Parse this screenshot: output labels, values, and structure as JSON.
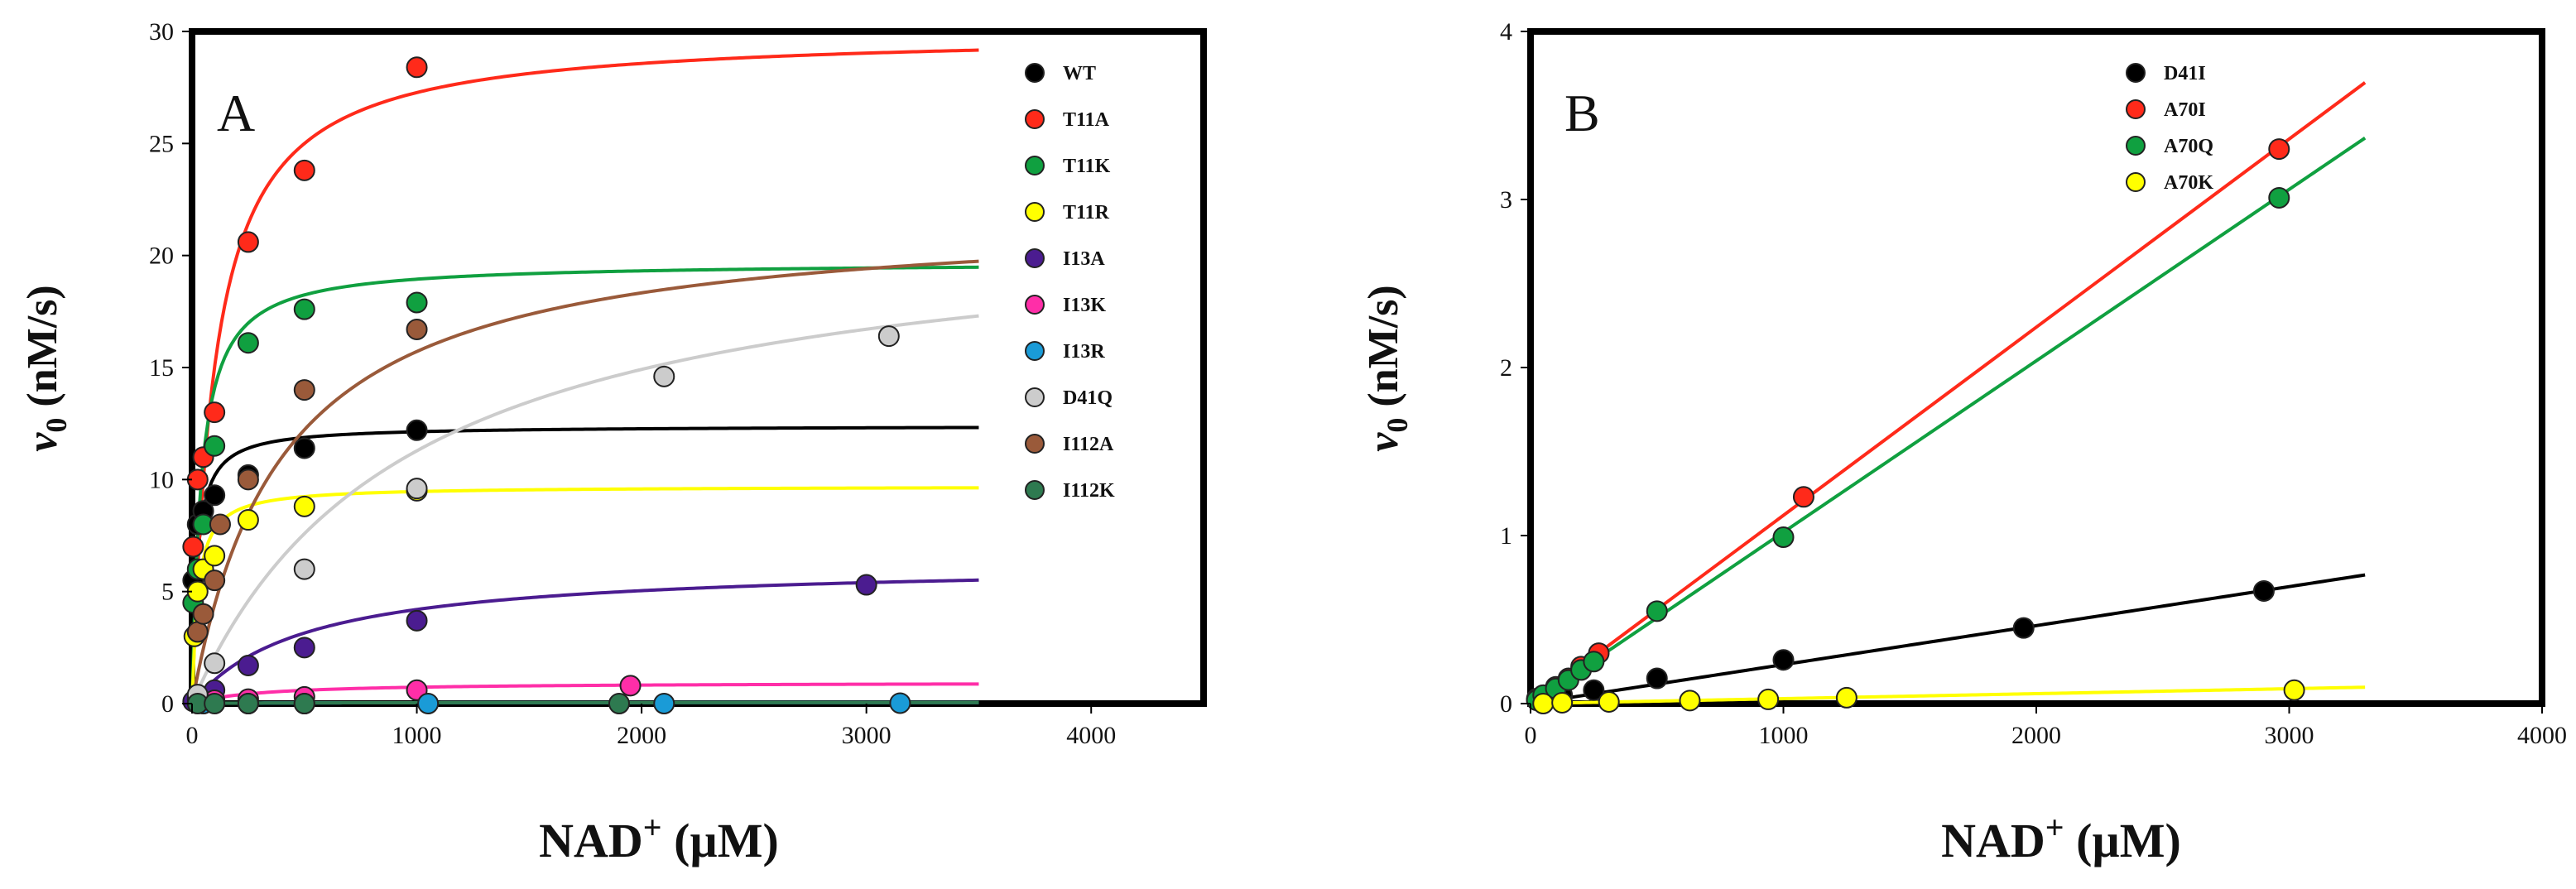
{
  "chart_data": [
    {
      "type": "scatter",
      "panel": "A",
      "xlabel_main": "NAD",
      "xlabel_sup": "+",
      "xlabel_unit": " (µM)",
      "ylabel_main": "v",
      "ylabel_sub": "0",
      "ylabel_unit": " (nM/s)",
      "xlim": [
        0,
        4500
      ],
      "ylim": [
        0,
        30
      ],
      "xticks": [
        0,
        1000,
        2000,
        3000,
        4000
      ],
      "yticks": [
        0,
        5,
        10,
        15,
        20,
        25,
        30
      ],
      "legend_position": "top-right",
      "series": [
        {
          "name": "WT",
          "color": "#000000",
          "fit": {
            "vmax": 12.4,
            "km": 22,
            "xmax": 3500
          },
          "points": [
            [
              5,
              5.5
            ],
            [
              25,
              8
            ],
            [
              50,
              8.6
            ],
            [
              100,
              9.3
            ],
            [
              250,
              10.2
            ],
            [
              500,
              11.4
            ],
            [
              1000,
              12.2
            ]
          ]
        },
        {
          "name": "T11A",
          "color": "#ff2a1a",
          "fit": {
            "vmax": 30,
            "km": 100,
            "xmax": 3500
          },
          "points": [
            [
              5,
              7
            ],
            [
              25,
              10
            ],
            [
              50,
              11
            ],
            [
              100,
              13
            ],
            [
              250,
              20.6
            ],
            [
              500,
              23.8
            ],
            [
              1000,
              28.4
            ]
          ]
        },
        {
          "name": "T11K",
          "color": "#10a040",
          "fit": {
            "vmax": 19.7,
            "km": 40,
            "xmax": 3500
          },
          "points": [
            [
              5,
              4.5
            ],
            [
              25,
              6
            ],
            [
              50,
              8
            ],
            [
              100,
              11.5
            ],
            [
              250,
              16.1
            ],
            [
              500,
              17.6
            ],
            [
              1000,
              17.9
            ]
          ]
        },
        {
          "name": "T11R",
          "color": "#ffff00",
          "fit": {
            "vmax": 9.7,
            "km": 25,
            "xmax": 3500
          },
          "points": [
            [
              10,
              3
            ],
            [
              25,
              5
            ],
            [
              50,
              6
            ],
            [
              100,
              6.6
            ],
            [
              250,
              8.2
            ],
            [
              500,
              8.8
            ],
            [
              1000,
              9.5
            ]
          ]
        },
        {
          "name": "I13A",
          "color": "#4b1c90",
          "fit": {
            "vmax": 6.3,
            "km": 500,
            "xmax": 3500
          },
          "points": [
            [
              5,
              0.1
            ],
            [
              25,
              0.2
            ],
            [
              100,
              0.6
            ],
            [
              250,
              1.7
            ],
            [
              500,
              2.5
            ],
            [
              1000,
              3.7
            ],
            [
              3000,
              5.3
            ]
          ]
        },
        {
          "name": "I13K",
          "color": "#ff2ea8",
          "fit": {
            "vmax": 0.95,
            "km": 300,
            "xmax": 3500
          },
          "points": [
            [
              50,
              0.1
            ],
            [
              100,
              0.15
            ],
            [
              250,
              0.2
            ],
            [
              500,
              0.3
            ],
            [
              1000,
              0.6
            ],
            [
              1950,
              0.8
            ]
          ]
        },
        {
          "name": "I13R",
          "color": "#1a9bd7",
          "fit": {
            "vmax": 0.05,
            "km": 300,
            "xmax": 3500
          },
          "points": [
            [
              50,
              0
            ],
            [
              250,
              0
            ],
            [
              500,
              0
            ],
            [
              1050,
              0
            ],
            [
              2100,
              0
            ],
            [
              3150,
              0.02
            ]
          ]
        },
        {
          "name": "D41Q",
          "color": "#cccccc",
          "fit": {
            "vmax": 22,
            "km": 950,
            "xmax": 3500
          },
          "points": [
            [
              25,
              0.4
            ],
            [
              100,
              1.8
            ],
            [
              500,
              6
            ],
            [
              1000,
              9.6
            ],
            [
              2100,
              14.6
            ],
            [
              3100,
              16.4
            ]
          ]
        },
        {
          "name": "I112A",
          "color": "#9a5a3a",
          "fit": {
            "vmax": 22,
            "km": 400,
            "xmax": 3500
          },
          "points": [
            [
              25,
              3.2
            ],
            [
              50,
              4
            ],
            [
              100,
              5.5
            ],
            [
              125,
              8
            ],
            [
              250,
              10
            ],
            [
              500,
              14
            ],
            [
              1000,
              16.7
            ]
          ]
        },
        {
          "name": "I112K",
          "color": "#2e7a50",
          "fit": {
            "vmax": 0.05,
            "km": 300,
            "xmax": 3500
          },
          "points": [
            [
              25,
              0
            ],
            [
              100,
              0
            ],
            [
              250,
              0
            ],
            [
              500,
              0
            ],
            [
              1900,
              0
            ]
          ]
        }
      ]
    },
    {
      "type": "scatter",
      "panel": "B",
      "xlabel_main": "NAD",
      "xlabel_sup": "+",
      "xlabel_unit": " (µM)",
      "ylabel_main": "v",
      "ylabel_sub": "0",
      "ylabel_unit": " (nM/s)",
      "xlim": [
        0,
        4000
      ],
      "ylim": [
        0,
        4
      ],
      "xticks": [
        0,
        1000,
        2000,
        3000,
        4000
      ],
      "yticks": [
        0,
        1,
        2,
        3,
        4
      ],
      "legend_position": "top-right",
      "series": [
        {
          "name": "D41I",
          "color": "#000000",
          "fit": {
            "slope": 0.000232,
            "xmax": 3300
          },
          "points": [
            [
              25,
              0.02
            ],
            [
              50,
              0.03
            ],
            [
              100,
              0.04
            ],
            [
              125,
              0.05
            ],
            [
              250,
              0.08
            ],
            [
              500,
              0.15
            ],
            [
              1000,
              0.26
            ],
            [
              1950,
              0.45
            ],
            [
              2900,
              0.67
            ]
          ]
        },
        {
          "name": "A70I",
          "color": "#ff2a1a",
          "fit": {
            "slope": 0.00112,
            "xmax": 3300
          },
          "points": [
            [
              25,
              0.03
            ],
            [
              50,
              0.05
            ],
            [
              100,
              0.1
            ],
            [
              150,
              0.15
            ],
            [
              200,
              0.22
            ],
            [
              270,
              0.3
            ],
            [
              1080,
              1.23
            ],
            [
              2960,
              3.3
            ]
          ]
        },
        {
          "name": "A70Q",
          "color": "#10a040",
          "fit": {
            "slope": 0.00102,
            "xmax": 3300
          },
          "points": [
            [
              25,
              0.02
            ],
            [
              50,
              0.05
            ],
            [
              100,
              0.09
            ],
            [
              150,
              0.14
            ],
            [
              200,
              0.2
            ],
            [
              250,
              0.25
            ],
            [
              500,
              0.55
            ],
            [
              1000,
              0.99
            ],
            [
              2960,
              3.01
            ]
          ]
        },
        {
          "name": "A70K",
          "color": "#ffff00",
          "fit": {
            "slope": 2.95e-05,
            "xmax": 3300
          },
          "points": [
            [
              50,
              0
            ],
            [
              125,
              0.005
            ],
            [
              310,
              0.01
            ],
            [
              630,
              0.018
            ],
            [
              940,
              0.025
            ],
            [
              1250,
              0.035
            ],
            [
              3020,
              0.08
            ]
          ]
        }
      ]
    }
  ]
}
